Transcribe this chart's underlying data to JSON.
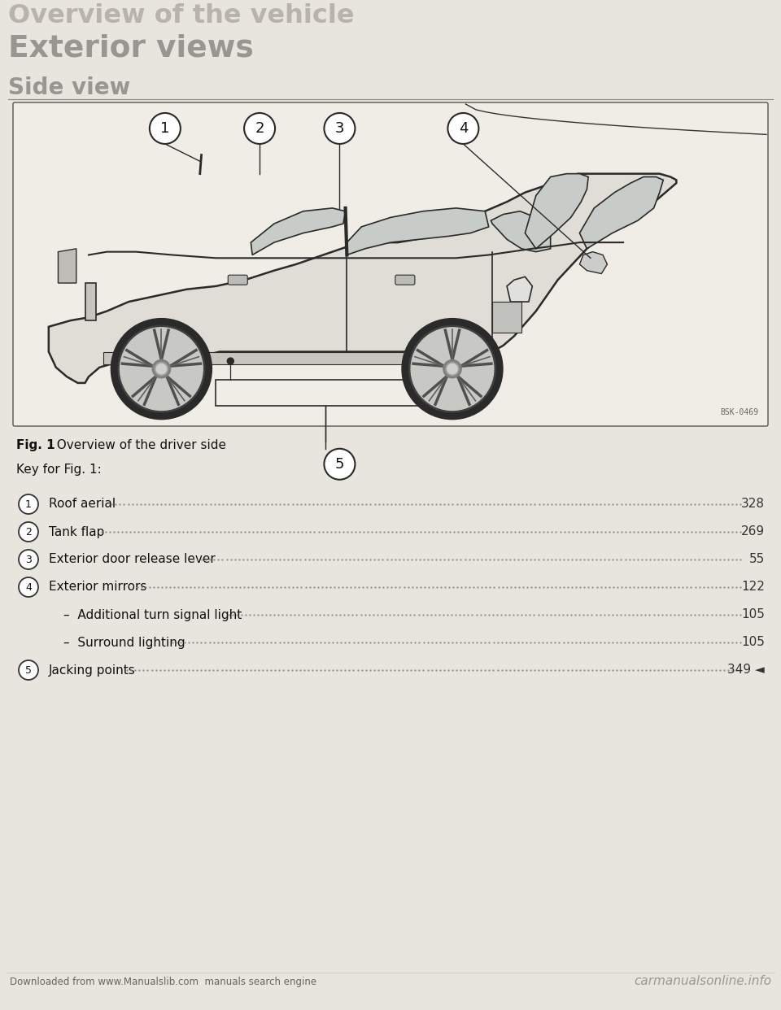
{
  "page_bg": "#e8e5de",
  "box_bg": "#f0ede6",
  "header_text": "Overview of the vehicle",
  "header_color": "#b8b4ac",
  "section_title": "Exterior views",
  "section_color": "#999590",
  "subsection_title": "Side view",
  "subsection_color": "#999590",
  "fig_caption_bold": "Fig. 1",
  "fig_caption_rest": "  Overview of the driver side",
  "key_header": "Key for Fig. 1:",
  "items": [
    {
      "num": "1",
      "text": "Roof aerial",
      "page": "328",
      "indent": 0
    },
    {
      "num": "2",
      "text": "Tank flap",
      "page": "269",
      "indent": 0
    },
    {
      "num": "3",
      "text": "Exterior door release lever",
      "page": "55",
      "indent": 0
    },
    {
      "num": "4",
      "text": "Exterior mirrors",
      "page": "122",
      "indent": 0
    },
    {
      "num": "",
      "text": "–  Additional turn signal light",
      "page": "105",
      "indent": 1
    },
    {
      "num": "",
      "text": "–  Surround lighting",
      "page": "105",
      "indent": 1
    },
    {
      "num": "5",
      "text": "Jacking points",
      "page": "349 ◄",
      "indent": 0
    }
  ],
  "footer_left": "Downloaded from www.Manualslib.com  manuals search engine",
  "footer_right": "carmanualsonline.info",
  "image_label": "BSK-0469",
  "car_color": "#e0ddd6",
  "car_edge": "#2a2a2a",
  "window_color": "#c8ccc8",
  "wheel_dark": "#2a2a2a",
  "wheel_light": "#c8c8c4"
}
